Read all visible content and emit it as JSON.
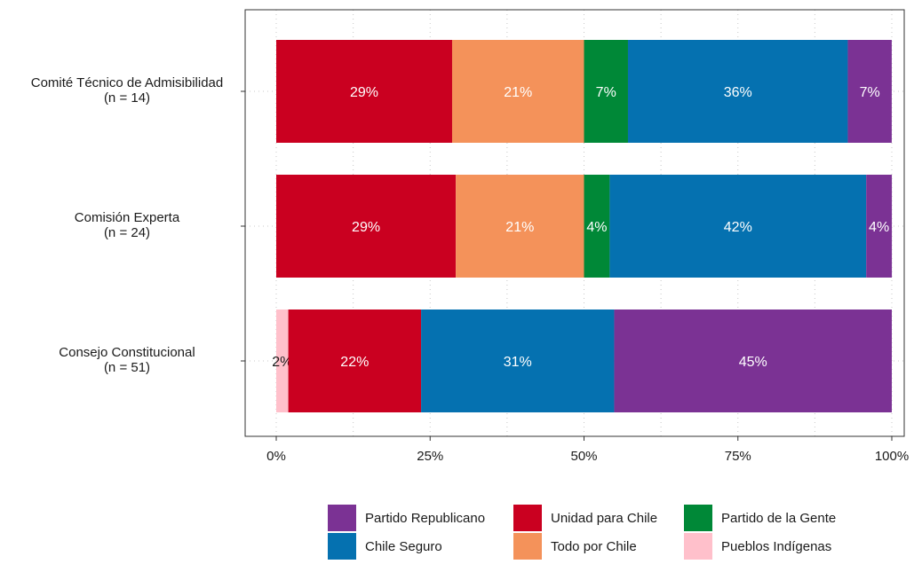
{
  "chart_data": {
    "type": "bar",
    "orientation": "horizontal",
    "stacked": true,
    "percent_scale": true,
    "title": "",
    "xlabel": "",
    "ylabel": "",
    "xlim": [
      0,
      1
    ],
    "x_ticks": [
      {
        "value": 0,
        "label": "0%"
      },
      {
        "value": 0.25,
        "label": "25%"
      },
      {
        "value": 0.5,
        "label": "50%"
      },
      {
        "value": 0.75,
        "label": "75%"
      },
      {
        "value": 1,
        "label": "100%"
      }
    ],
    "grid": true,
    "legend_position": "bottom",
    "categories": [
      {
        "name": "Comité Técnico de Admisibilidad",
        "n_label": "(n = 14)"
      },
      {
        "name": "Comisión Experta",
        "n_label": "(n = 24)"
      },
      {
        "name": "Consejo Constitucional",
        "n_label": "(n = 51)"
      }
    ],
    "bars": [
      {
        "segments": [
          {
            "party": "Unidad para Chile",
            "value": 0.2857,
            "label": "29%"
          },
          {
            "party": "Todo por Chile",
            "value": 0.2143,
            "label": "21%"
          },
          {
            "party": "Partido de la Gente",
            "value": 0.0714,
            "label": "7%"
          },
          {
            "party": "Chile Seguro",
            "value": 0.3571,
            "label": "36%"
          },
          {
            "party": "Partido Republicano",
            "value": 0.0714,
            "label": "7%"
          }
        ]
      },
      {
        "segments": [
          {
            "party": "Unidad para Chile",
            "value": 0.2917,
            "label": "29%"
          },
          {
            "party": "Todo por Chile",
            "value": 0.2083,
            "label": "21%"
          },
          {
            "party": "Partido de la Gente",
            "value": 0.0417,
            "label": "4%"
          },
          {
            "party": "Chile Seguro",
            "value": 0.4167,
            "label": "42%"
          },
          {
            "party": "Partido Republicano",
            "value": 0.0417,
            "label": "4%"
          }
        ]
      },
      {
        "segments": [
          {
            "party": "Pueblos Indígenas",
            "value": 0.0196,
            "label": "2%"
          },
          {
            "party": "Unidad para Chile",
            "value": 0.2157,
            "label": "22%"
          },
          {
            "party": "Chile Seguro",
            "value": 0.3137,
            "label": "31%"
          },
          {
            "party": "Partido Republicano",
            "value": 0.451,
            "label": "45%"
          }
        ]
      }
    ],
    "legend": [
      {
        "name": "Partido Republicano",
        "color": "#7b3294"
      },
      {
        "name": "Unidad para Chile",
        "color": "#ca0020"
      },
      {
        "name": "Partido de la Gente",
        "color": "#008837"
      },
      {
        "name": "Chile Seguro",
        "color": "#0571b0"
      },
      {
        "name": "Todo por Chile",
        "color": "#f4925a"
      },
      {
        "name": "Pueblos Indígenas",
        "color": "#ffc0cb"
      }
    ],
    "label_colors": {
      "on_light": "#1a1a1a",
      "default": "#ffffff",
      "light_segment_parties": [
        "Pueblos Indígenas"
      ]
    },
    "axis_color": "#333333",
    "grid_color": "#c8c8c8"
  }
}
